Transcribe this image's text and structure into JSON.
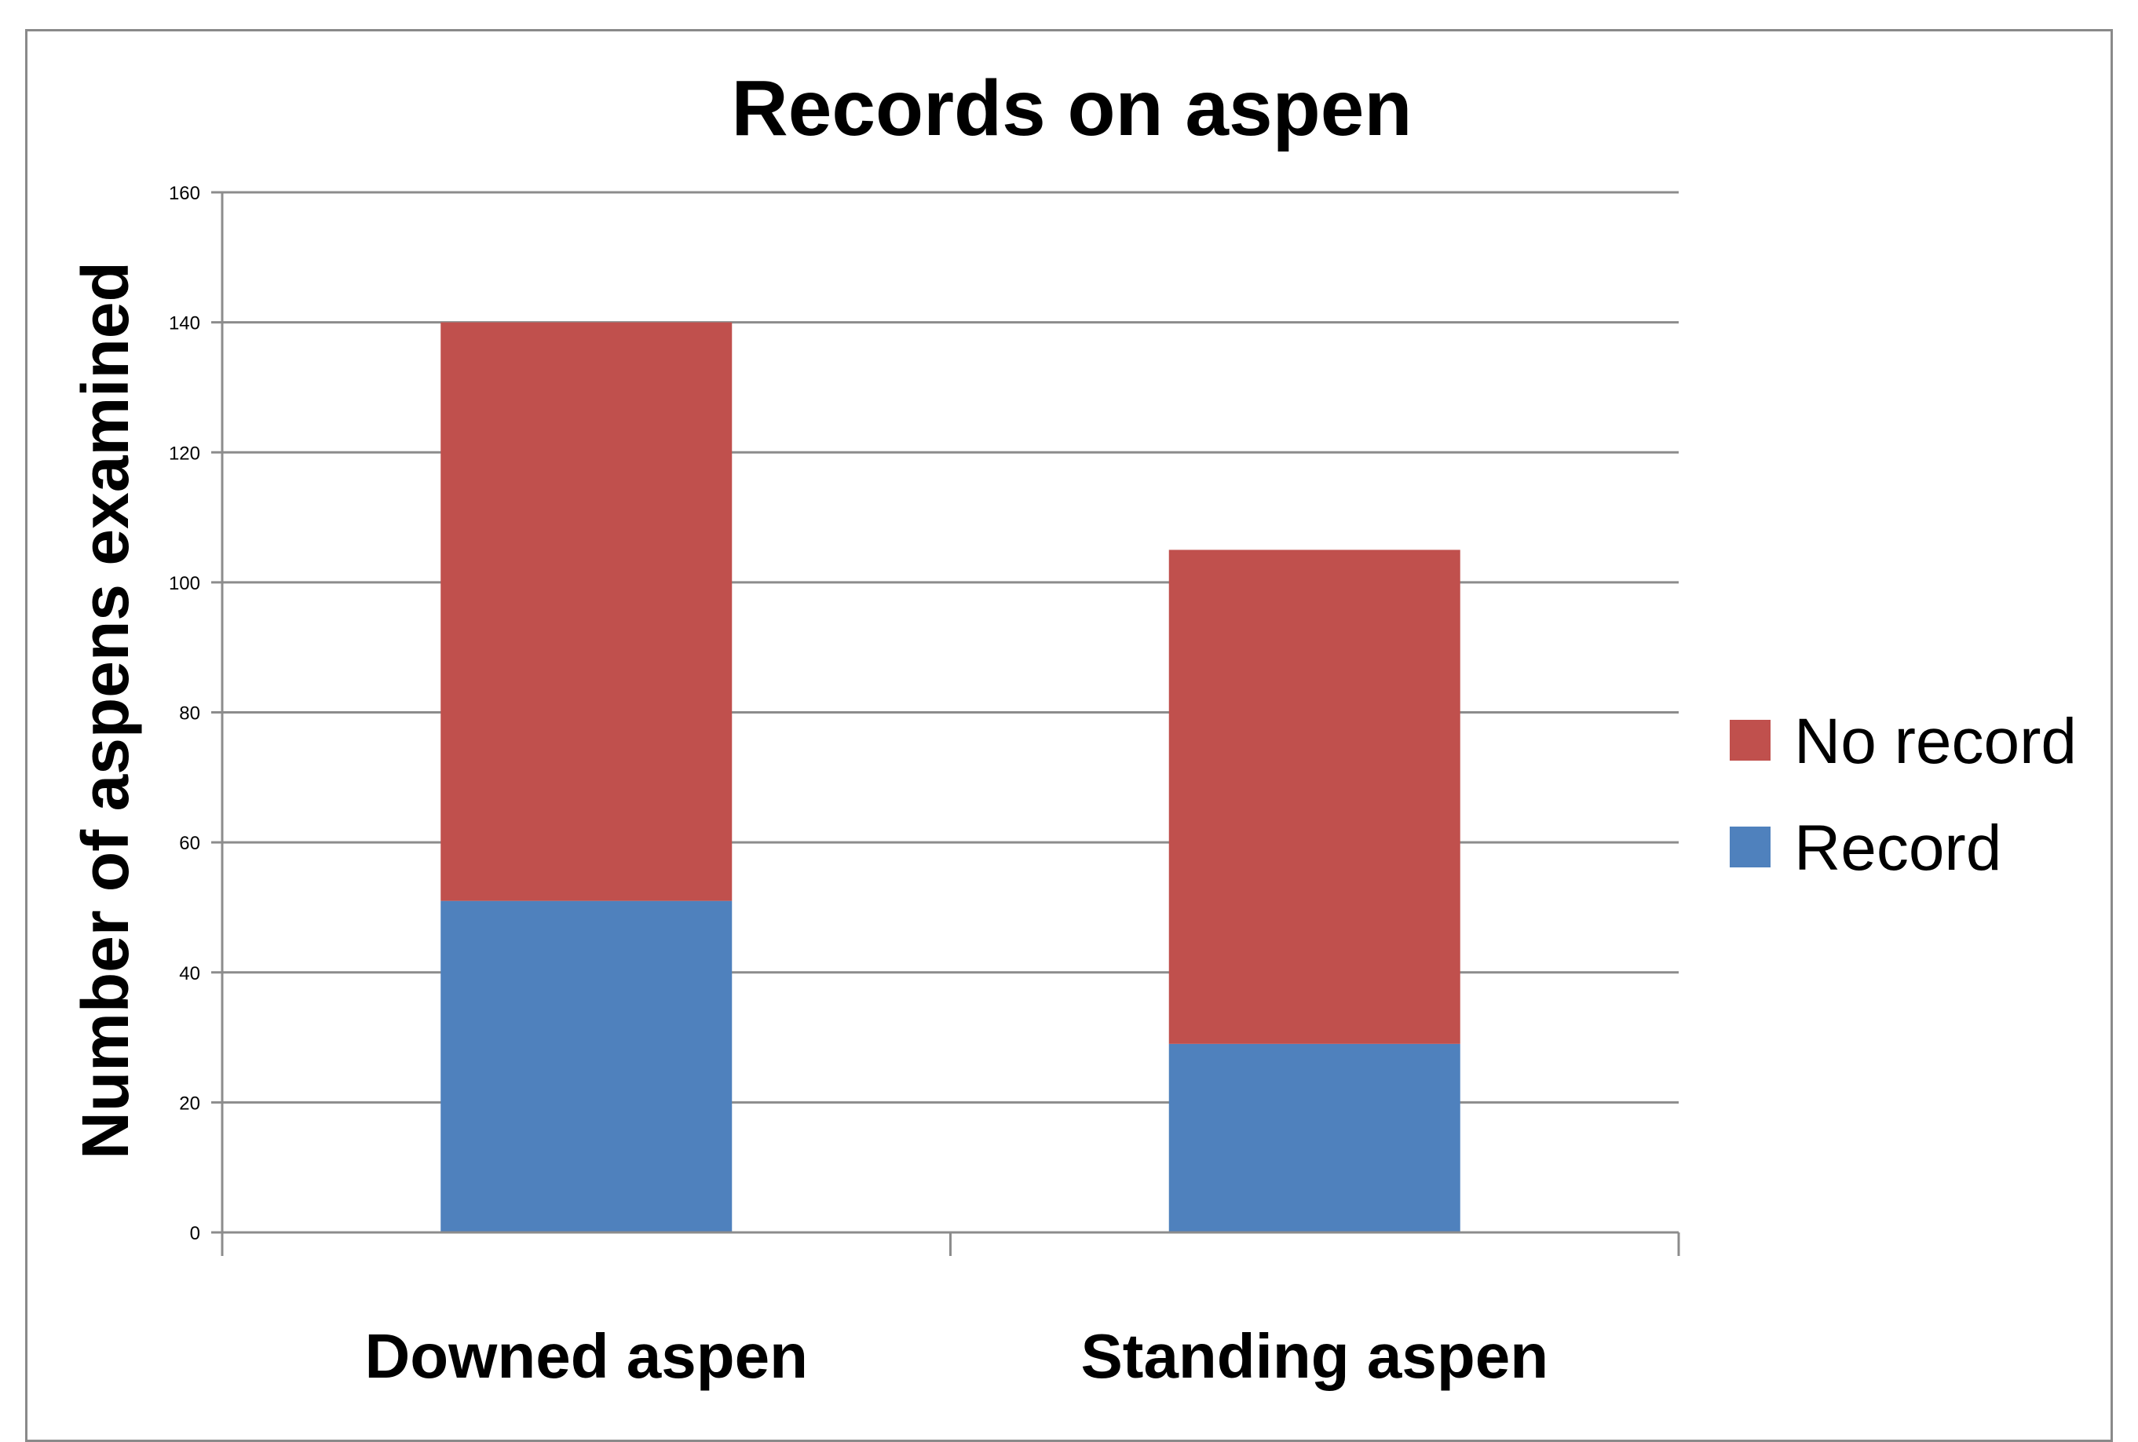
{
  "chart_data": {
    "type": "bar",
    "stacked": true,
    "title": "Records  on aspen",
    "xlabel": "",
    "ylabel": "Number  of aspens examined",
    "categories": [
      "Downed aspen",
      "Standing aspen"
    ],
    "series": [
      {
        "name": "Record",
        "values": [
          51,
          29
        ],
        "color": "#4F81BD"
      },
      {
        "name": "No record",
        "values": [
          89,
          76
        ],
        "color": "#C0504D"
      }
    ],
    "ylim": [
      0,
      160
    ],
    "yticks": [
      0,
      20,
      40,
      60,
      80,
      100,
      120,
      140,
      160
    ],
    "grid": true,
    "legend": {
      "position": "right",
      "order": [
        "No record",
        "Record"
      ]
    }
  }
}
